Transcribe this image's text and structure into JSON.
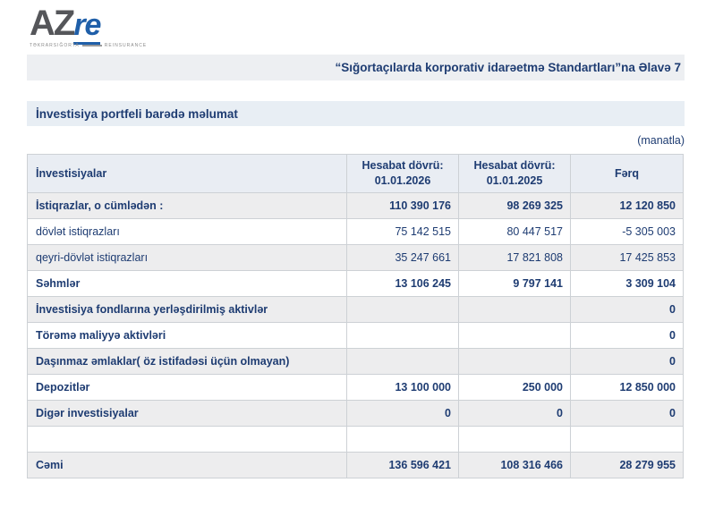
{
  "logo": {
    "part_az": "AZ",
    "part_re": "re",
    "subtext_left": "TƏKRARSIĞORTA",
    "subtext_right": "REINSURANCE"
  },
  "header": {
    "annex_title": "“Sığortaçılarda korporativ idarəetmə Standartları”na Əlavə 7"
  },
  "section": {
    "title": "İnvestisiya portfeli barədə məlumat",
    "unit_note": "(manatla)"
  },
  "table": {
    "columns": {
      "col1": {
        "line1": "İnvestisiyalar"
      },
      "col2": {
        "line1": "Hesabat dövrü:",
        "line2": "01.01.2026"
      },
      "col3": {
        "line1": "Hesabat dövrü:",
        "line2": "01.01.2025"
      },
      "col4": {
        "line1": "Fərq"
      }
    },
    "rows": [
      {
        "label": "İstiqrazlar, o cümlədən :",
        "v2026": "110 390 176",
        "v2025": "98 269 325",
        "diff": "12 120 850",
        "bold": true
      },
      {
        "label": "dövlət istiqrazları",
        "v2026": "75 142 515",
        "v2025": "80 447 517",
        "diff": "-5 305 003",
        "bold": false
      },
      {
        "label": "qeyri-dövlət istiqrazları",
        "v2026": "35 247 661",
        "v2025": "17 821 808",
        "diff": "17 425 853",
        "bold": false
      },
      {
        "label": "Səhmlər",
        "v2026": "13 106 245",
        "v2025": "9 797 141",
        "diff": "3 309 104",
        "bold": true
      },
      {
        "label": "İnvestisiya fondlarına yerləşdirilmiş aktivlər",
        "v2026": "",
        "v2025": "",
        "diff": "0",
        "bold": true
      },
      {
        "label": "Törəmə maliyyə aktivləri",
        "v2026": "",
        "v2025": "",
        "diff": "0",
        "bold": true
      },
      {
        "label": "Daşınmaz əmlaklar( öz istifadəsi üçün olmayan)",
        "v2026": "",
        "v2025": "",
        "diff": "0",
        "bold": true
      },
      {
        "label": "Depozitlər",
        "v2026": "13 100 000",
        "v2025": "250 000",
        "diff": "12 850 000",
        "bold": true
      },
      {
        "label": "Digər investisiyalar",
        "v2026": "0",
        "v2025": "0",
        "diff": "0",
        "bold": true
      },
      {
        "label": "",
        "v2026": "",
        "v2025": "",
        "diff": "",
        "bold": false
      },
      {
        "label": "Cəmi",
        "v2026": "136 596 421",
        "v2025": "108 316 466",
        "diff": "28 279 955",
        "bold": true
      }
    ]
  }
}
